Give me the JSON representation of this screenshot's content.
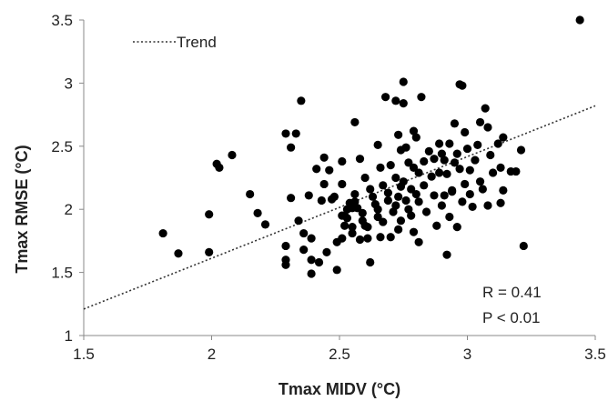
{
  "chart_data": {
    "type": "scatter",
    "xlabel": "Tmax MIDV (°C)",
    "ylabel": "Tmax RMSE (°C)",
    "xlim": [
      1.5,
      3.5
    ],
    "ylim": [
      1,
      3.5
    ],
    "xticks": [
      "1.5",
      "2",
      "2.5",
      "3",
      "3.5"
    ],
    "yticks": [
      "1",
      "1.5",
      "2",
      "2.5",
      "3",
      "3.5"
    ],
    "grid": false,
    "legend": {
      "position": "top-left",
      "entries": [
        "Trend"
      ]
    },
    "annotations": [
      "R = 0.41",
      "P < 0.01"
    ],
    "trend": {
      "x": [
        1.5,
        3.5
      ],
      "y": [
        1.21,
        2.82
      ]
    },
    "series": [
      {
        "points": [
          [
            1.81,
            1.81
          ],
          [
            1.87,
            1.65
          ],
          [
            1.99,
            1.96
          ],
          [
            1.99,
            1.66
          ],
          [
            2.02,
            2.36
          ],
          [
            2.03,
            2.33
          ],
          [
            2.08,
            2.43
          ],
          [
            2.15,
            2.12
          ],
          [
            2.18,
            1.97
          ],
          [
            2.21,
            1.88
          ],
          [
            2.29,
            2.6
          ],
          [
            2.29,
            1.71
          ],
          [
            2.29,
            1.6
          ],
          [
            2.29,
            1.56
          ],
          [
            2.31,
            2.49
          ],
          [
            2.31,
            2.09
          ],
          [
            2.33,
            2.6
          ],
          [
            2.34,
            1.91
          ],
          [
            2.35,
            2.86
          ],
          [
            2.36,
            1.81
          ],
          [
            2.36,
            1.68
          ],
          [
            2.38,
            2.11
          ],
          [
            2.39,
            1.49
          ],
          [
            2.39,
            1.77
          ],
          [
            2.39,
            1.6
          ],
          [
            2.41,
            2.32
          ],
          [
            2.42,
            1.58
          ],
          [
            2.43,
            2.07
          ],
          [
            2.44,
            2.41
          ],
          [
            2.44,
            2.2
          ],
          [
            2.45,
            1.66
          ],
          [
            2.46,
            2.31
          ],
          [
            2.47,
            2.08
          ],
          [
            2.48,
            2.1
          ],
          [
            2.49,
            1.74
          ],
          [
            2.49,
            1.52
          ],
          [
            2.51,
            2.2
          ],
          [
            2.51,
            2.38
          ],
          [
            2.51,
            1.95
          ],
          [
            2.51,
            1.77
          ],
          [
            2.52,
            1.95
          ],
          [
            2.52,
            1.87
          ],
          [
            2.53,
            2.0
          ],
          [
            2.53,
            1.93
          ],
          [
            2.54,
            2.05
          ],
          [
            2.55,
            2.01
          ],
          [
            2.55,
            1.86
          ],
          [
            2.55,
            1.81
          ],
          [
            2.56,
            2.69
          ],
          [
            2.56,
            2.12
          ],
          [
            2.56,
            2.06
          ],
          [
            2.57,
            2.01
          ],
          [
            2.58,
            1.76
          ],
          [
            2.58,
            2.4
          ],
          [
            2.59,
            1.97
          ],
          [
            2.59,
            1.91
          ],
          [
            2.6,
            2.25
          ],
          [
            2.6,
            1.87
          ],
          [
            2.61,
            1.86
          ],
          [
            2.61,
            1.77
          ],
          [
            2.62,
            1.58
          ],
          [
            2.62,
            2.16
          ],
          [
            2.63,
            2.1
          ],
          [
            2.64,
            2.04
          ],
          [
            2.65,
            2.51
          ],
          [
            2.65,
            2.0
          ],
          [
            2.65,
            1.94
          ],
          [
            2.66,
            2.33
          ],
          [
            2.66,
            1.78
          ],
          [
            2.67,
            1.9
          ],
          [
            2.67,
            2.19
          ],
          [
            2.68,
            2.89
          ],
          [
            2.69,
            2.13
          ],
          [
            2.69,
            2.07
          ],
          [
            2.7,
            1.78
          ],
          [
            2.7,
            2.35
          ],
          [
            2.71,
            1.98
          ],
          [
            2.72,
            2.25
          ],
          [
            2.72,
            2.03
          ],
          [
            2.72,
            2.86
          ],
          [
            2.73,
            2.59
          ],
          [
            2.73,
            2.1
          ],
          [
            2.73,
            1.84
          ],
          [
            2.74,
            2.47
          ],
          [
            2.74,
            2.18
          ],
          [
            2.74,
            1.91
          ],
          [
            2.75,
            3.01
          ],
          [
            2.75,
            2.22
          ],
          [
            2.75,
            2.84
          ],
          [
            2.76,
            2.49
          ],
          [
            2.76,
            2.07
          ],
          [
            2.77,
            2.0
          ],
          [
            2.77,
            2.37
          ],
          [
            2.78,
            2.16
          ],
          [
            2.78,
            1.95
          ],
          [
            2.79,
            2.62
          ],
          [
            2.79,
            2.33
          ],
          [
            2.79,
            1.82
          ],
          [
            2.8,
            2.12
          ],
          [
            2.8,
            2.57
          ],
          [
            2.81,
            2.06
          ],
          [
            2.81,
            2.29
          ],
          [
            2.81,
            1.74
          ],
          [
            2.82,
            2.89
          ],
          [
            2.83,
            2.19
          ],
          [
            2.83,
            2.38
          ],
          [
            2.84,
            1.98
          ],
          [
            2.85,
            2.46
          ],
          [
            2.86,
            2.26
          ],
          [
            2.87,
            2.11
          ],
          [
            2.87,
            2.4
          ],
          [
            2.88,
            1.87
          ],
          [
            2.89,
            2.29
          ],
          [
            2.89,
            2.52
          ],
          [
            2.9,
            2.03
          ],
          [
            2.9,
            2.44
          ],
          [
            2.91,
            2.39
          ],
          [
            2.91,
            2.11
          ],
          [
            2.92,
            1.64
          ],
          [
            2.92,
            2.28
          ],
          [
            2.93,
            1.94
          ],
          [
            2.93,
            2.52
          ],
          [
            2.94,
            2.14
          ],
          [
            2.94,
            2.15
          ],
          [
            2.95,
            2.68
          ],
          [
            2.95,
            2.37
          ],
          [
            2.96,
            1.86
          ],
          [
            2.96,
            2.44
          ],
          [
            2.97,
            2.99
          ],
          [
            2.97,
            2.32
          ],
          [
            2.98,
            2.06
          ],
          [
            2.98,
            2.98
          ],
          [
            2.99,
            2.2
          ],
          [
            2.99,
            2.61
          ],
          [
            3.0,
            2.48
          ],
          [
            3.01,
            2.31
          ],
          [
            3.01,
            2.12
          ],
          [
            3.02,
            2.02
          ],
          [
            3.03,
            2.39
          ],
          [
            3.04,
            2.51
          ],
          [
            3.05,
            2.22
          ],
          [
            3.05,
            2.69
          ],
          [
            3.06,
            2.16
          ],
          [
            3.07,
            2.8
          ],
          [
            3.08,
            2.65
          ],
          [
            3.08,
            2.03
          ],
          [
            3.09,
            2.43
          ],
          [
            3.1,
            2.29
          ],
          [
            3.12,
            2.52
          ],
          [
            3.13,
            2.05
          ],
          [
            3.13,
            2.33
          ],
          [
            3.14,
            2.57
          ],
          [
            3.14,
            2.15
          ],
          [
            3.17,
            2.3
          ],
          [
            3.19,
            2.3
          ],
          [
            3.21,
            2.47
          ],
          [
            3.22,
            1.71
          ],
          [
            3.44,
            3.5
          ]
        ]
      }
    ]
  }
}
